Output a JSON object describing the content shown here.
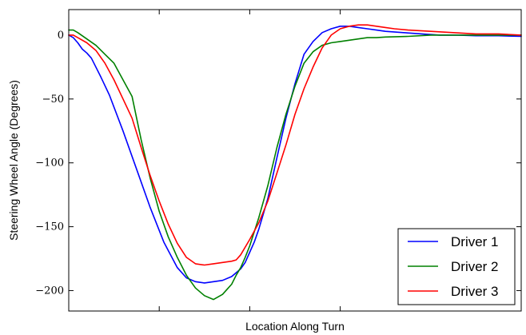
{
  "chart_data": {
    "type": "line",
    "xlabel": "Location Along Turn",
    "ylabel": "Steering Wheel Angle (Degrees)",
    "xlim": [
      0,
      100
    ],
    "ylim": [
      -216,
      20
    ],
    "x_ticks": [
      20,
      40,
      60
    ],
    "y_ticks": [
      0,
      -50,
      -100,
      -150,
      -200
    ],
    "y_tick_labels": [
      "0",
      "−50",
      "−100",
      "−150",
      "−200"
    ],
    "grid": false,
    "legend_position": "lower-right",
    "series": [
      {
        "name": "Driver 1",
        "color": "#0000ff",
        "x": [
          0,
          1,
          2,
          3,
          4,
          5,
          7,
          9,
          12,
          15,
          18,
          21,
          24,
          26,
          28,
          30,
          32,
          34,
          36,
          37,
          38,
          39,
          40,
          41,
          42,
          43,
          44,
          45,
          46,
          48,
          50,
          52,
          54,
          56,
          58,
          60,
          62,
          64,
          66,
          68,
          70,
          74,
          78,
          82,
          86,
          90,
          95,
          100
        ],
        "y": [
          0,
          -2,
          -6,
          -11,
          -14,
          -18,
          -32,
          -47,
          -75,
          -105,
          -135,
          -162,
          -182,
          -190,
          -193,
          -194,
          -193,
          -192,
          -189,
          -186,
          -183,
          -178,
          -170,
          -162,
          -152,
          -140,
          -128,
          -112,
          -96,
          -65,
          -38,
          -15,
          -5,
          2,
          5,
          7,
          7,
          6,
          5,
          4,
          3,
          2,
          1,
          0,
          0,
          -0.5,
          -0.5,
          -1
        ]
      },
      {
        "name": "Driver 2",
        "color": "#008000",
        "x": [
          0,
          1,
          2,
          4,
          6,
          8,
          10,
          12,
          14,
          16,
          18,
          20,
          22,
          24,
          26,
          28,
          30,
          32,
          34,
          35,
          36,
          37,
          38,
          39,
          40,
          42,
          44,
          46,
          48,
          50,
          52,
          54,
          56,
          58,
          60,
          62,
          64,
          66,
          68,
          70,
          75,
          80,
          85,
          90,
          95,
          100
        ],
        "y": [
          4,
          4,
          2,
          -3,
          -8,
          -15,
          -22,
          -35,
          -48,
          -82,
          -112,
          -138,
          -158,
          -174,
          -188,
          -198,
          -204,
          -207,
          -203,
          -199,
          -195,
          -188,
          -182,
          -174,
          -165,
          -143,
          -118,
          -88,
          -62,
          -40,
          -22,
          -13,
          -8,
          -6,
          -5,
          -4,
          -3,
          -2,
          -2,
          -1.5,
          -1,
          0,
          0,
          0,
          0,
          0
        ]
      },
      {
        "name": "Driver 3",
        "color": "#ff0000",
        "x": [
          0,
          1,
          2,
          4,
          6,
          8,
          10,
          12,
          14,
          16,
          18,
          20,
          22,
          24,
          26,
          28,
          30,
          32,
          34,
          36,
          37,
          38,
          40,
          42,
          44,
          46,
          48,
          50,
          52,
          54,
          56,
          58,
          60,
          62,
          64,
          66,
          68,
          70,
          72,
          75,
          80,
          85,
          90,
          95,
          100
        ],
        "y": [
          0,
          0,
          -2,
          -6,
          -12,
          -22,
          -35,
          -50,
          -65,
          -88,
          -110,
          -130,
          -148,
          -163,
          -174,
          -179,
          -180,
          -179,
          -178,
          -177,
          -176,
          -172,
          -160,
          -147,
          -130,
          -108,
          -86,
          -62,
          -42,
          -25,
          -10,
          0,
          5,
          7,
          8,
          8,
          7,
          6,
          5,
          4,
          3,
          2,
          1,
          1,
          0
        ]
      }
    ]
  }
}
